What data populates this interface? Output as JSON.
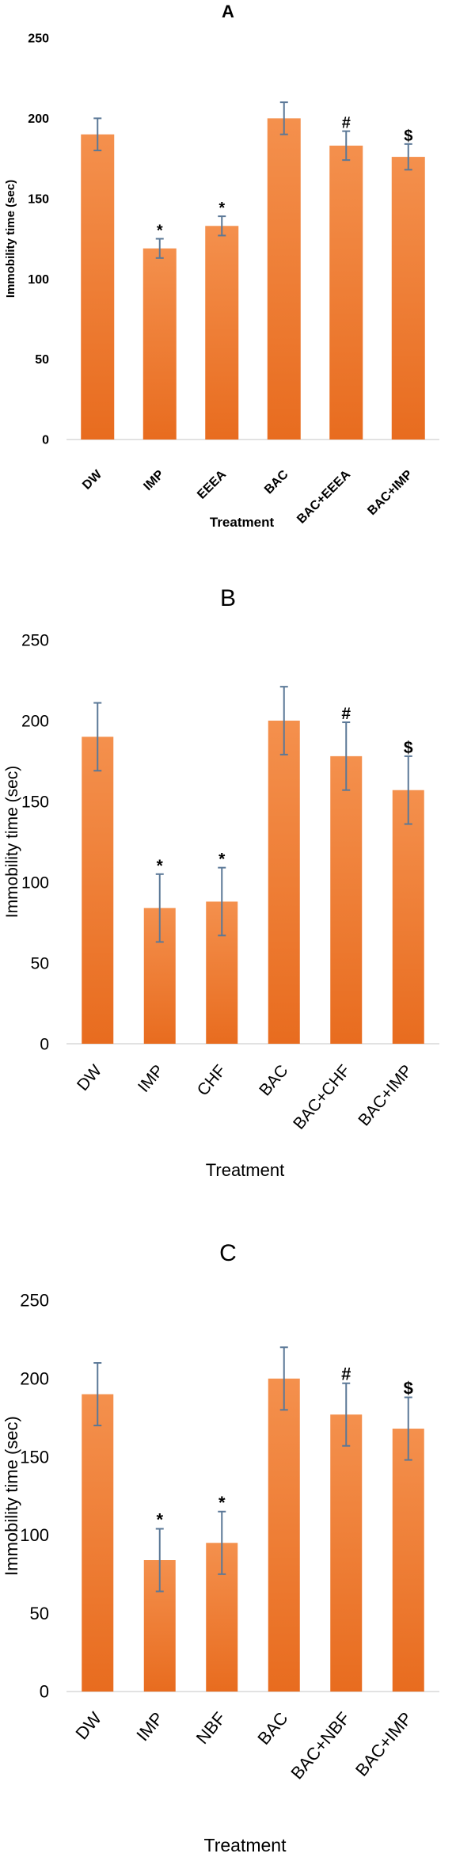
{
  "panels": [
    {
      "id": "A",
      "bold": true,
      "chart_data": {
        "type": "bar",
        "title": "A",
        "xlabel": "Treatment",
        "ylabel": "Immobility time (sec)",
        "ylim": [
          0,
          250
        ],
        "yticks": [
          0,
          50,
          100,
          150,
          200,
          250
        ],
        "categories": [
          "DW",
          "IMP",
          "EEEA",
          "BAC",
          "BAC+EEEA",
          "BAC+IMP"
        ],
        "values": [
          190,
          119,
          133,
          200,
          183,
          176
        ],
        "errors": [
          10,
          6,
          6,
          10,
          9,
          8
        ],
        "annotations": [
          "",
          "*",
          "*",
          "",
          "#",
          "$"
        ],
        "grid": false,
        "legend": "none"
      }
    },
    {
      "id": "B",
      "bold": false,
      "chart_data": {
        "type": "bar",
        "title": "B",
        "xlabel": "Treatment",
        "ylabel": "Immobility time (sec)",
        "ylim": [
          0,
          250
        ],
        "yticks": [
          0,
          50,
          100,
          150,
          200,
          250
        ],
        "categories": [
          "DW",
          "IMP",
          "CHF",
          "BAC",
          "BAC+CHF",
          "BAC+IMP"
        ],
        "values": [
          190,
          84,
          88,
          200,
          178,
          157
        ],
        "errors": [
          21,
          21,
          21,
          21,
          21,
          21
        ],
        "annotations": [
          "",
          "*",
          "*",
          "",
          "#",
          "$"
        ],
        "grid": false,
        "legend": "none"
      }
    },
    {
      "id": "C",
      "bold": false,
      "chart_data": {
        "type": "bar",
        "title": "C",
        "xlabel": "Treatment",
        "ylabel": "Immobility time (sec)",
        "ylim": [
          0,
          250
        ],
        "yticks": [
          0,
          50,
          100,
          150,
          200,
          250
        ],
        "categories": [
          "DW",
          "IMP",
          "NBF",
          "BAC",
          "BAC+NBF",
          "BAC+IMP"
        ],
        "values": [
          190,
          84,
          95,
          200,
          177,
          168
        ],
        "errors": [
          20,
          20,
          20,
          20,
          20,
          20
        ],
        "annotations": [
          "",
          "*",
          "*",
          "",
          "#",
          "$"
        ],
        "grid": false,
        "legend": "none"
      }
    }
  ],
  "colors": {
    "bar_top": "#f4904d",
    "bar_bottom": "#e86c1f",
    "error_bar": "#5b7897",
    "axis": "#d9d9d9",
    "text": "#000000"
  }
}
